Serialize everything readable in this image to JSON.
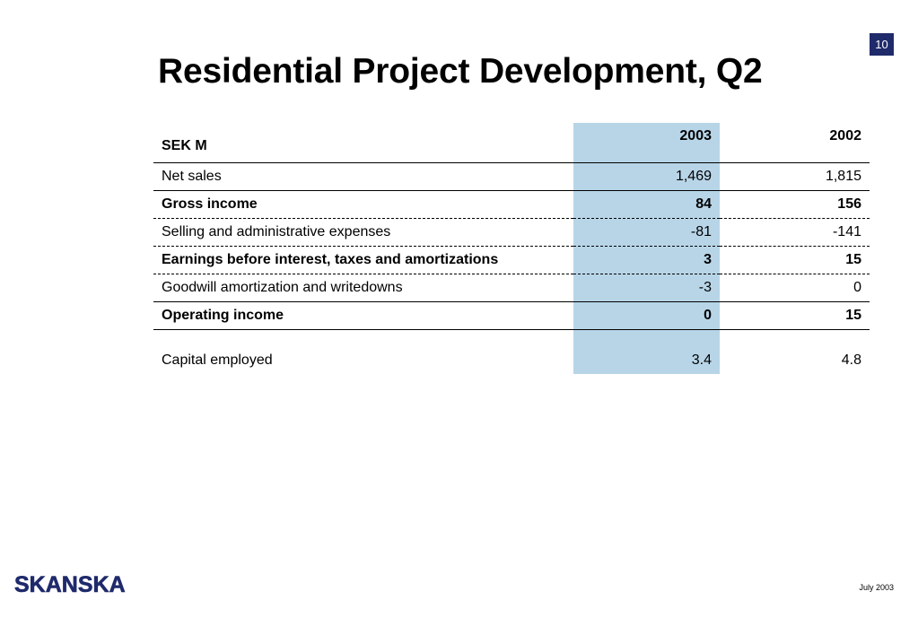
{
  "slide": {
    "page_number": "10",
    "title": "Residential Project Development, Q2",
    "logo_text": "SKANSKA",
    "date": "July 2003",
    "accent_color": "#1f2a6b",
    "highlight_color": "#b8d5e8"
  },
  "table": {
    "header": {
      "label": "SEK M",
      "col_2003": "2003",
      "col_2002": "2002"
    },
    "rows": [
      {
        "label": "Net sales",
        "v2003": "1,469",
        "v2002": "1,815"
      },
      {
        "label": "Gross income",
        "v2003": "84",
        "v2002": "156"
      },
      {
        "label": "Selling and administrative expenses",
        "v2003": "-81",
        "v2002": "-141"
      },
      {
        "label": "Earnings before interest, taxes and amortizations",
        "v2003": "3",
        "v2002": "15"
      },
      {
        "label": "Goodwill amortization and writedowns",
        "v2003": "-3",
        "v2002": "0"
      },
      {
        "label": "Operating income",
        "v2003": "0",
        "v2002": "15"
      },
      {
        "label": "Capital employed",
        "v2003": "3.4",
        "v2002": "4.8"
      }
    ]
  }
}
